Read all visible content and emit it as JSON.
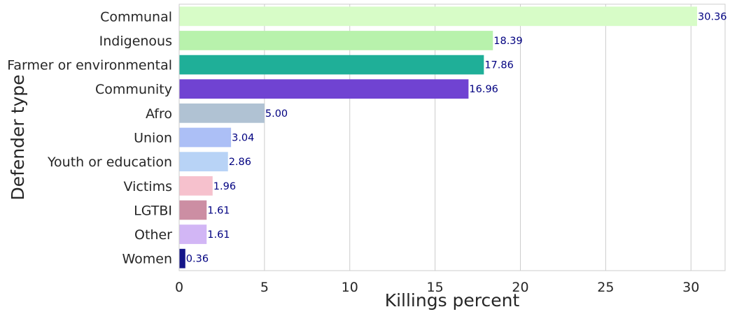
{
  "chart_data": {
    "type": "bar",
    "orientation": "horizontal",
    "categories": [
      "Communal",
      "Indigenous",
      "Farmer or environmental",
      "Community",
      "Afro",
      "Union",
      "Youth or education",
      "Victims",
      "LGTBI",
      "Other",
      "Women"
    ],
    "values": [
      30.36,
      18.39,
      17.86,
      16.96,
      5.0,
      3.04,
      2.86,
      1.96,
      1.61,
      1.61,
      0.36
    ],
    "value_labels": [
      "30.36",
      "18.39",
      "17.86",
      "16.96",
      "5.00",
      "3.04",
      "2.86",
      "1.96",
      "1.61",
      "1.61",
      "0.36"
    ],
    "colors": [
      "#d7fcc7",
      "#b8f2ac",
      "#1faf98",
      "#7043d2",
      "#b0c2d3",
      "#acbff6",
      "#b8d3f6",
      "#f6c1cd",
      "#cc8ea3",
      "#d2b6f5",
      "#141589"
    ],
    "xlabel": "Killings percent",
    "ylabel": "Defender type",
    "xlim": [
      0,
      32
    ],
    "xticks": [
      0,
      5,
      10,
      15,
      20,
      25,
      30
    ],
    "xtick_labels": [
      "0",
      "5",
      "10",
      "15",
      "20",
      "25",
      "30"
    ],
    "grid": "vertical",
    "data_label_color": "#000080",
    "title": ""
  }
}
